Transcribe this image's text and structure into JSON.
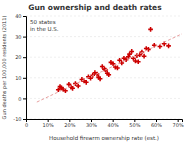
{
  "chart_data": {
    "type": "scatter",
    "title": "Gun ownership and death rates",
    "xlabel": "Household firearm ownership rate (est.)",
    "ylabel": "Gun deaths per 100,000 residents (2011)",
    "annotation": "50 states\nin the U.S.",
    "xlim": [
      0,
      0.72
    ],
    "ylim": [
      -10,
      40
    ],
    "xticks": [
      0,
      {
        "value": 0.1,
        "label": "10%"
      },
      {
        "value": 0.2,
        "label": "20%"
      },
      {
        "value": 0.3,
        "label": "30%"
      },
      {
        "value": 0.4,
        "label": "40%"
      },
      {
        "value": 0.5,
        "label": "50%"
      },
      {
        "value": 0.6,
        "label": "60%"
      },
      {
        "value": 0.7,
        "label": "70%"
      }
    ],
    "yticks": [
      -10,
      0,
      10,
      20,
      30,
      40
    ],
    "grid": "y",
    "series": [
      {
        "type": "scatter",
        "marker": "plus",
        "color": "#cc0000",
        "x": [
          0.149,
          0.157,
          0.163,
          0.171,
          0.182,
          0.198,
          0.208,
          0.215,
          0.228,
          0.241,
          0.258,
          0.268,
          0.278,
          0.288,
          0.298,
          0.308,
          0.318,
          0.328,
          0.335,
          0.342,
          0.352,
          0.362,
          0.368,
          0.375,
          0.382,
          0.392,
          0.402,
          0.412,
          0.422,
          0.432,
          0.442,
          0.452,
          0.462,
          0.472,
          0.478,
          0.488,
          0.495,
          0.505,
          0.512,
          0.518,
          0.525,
          0.535,
          0.545,
          0.555,
          0.565,
          0.575,
          0.592,
          0.618,
          0.638,
          0.658
        ],
        "values": [
          4.2,
          5.8,
          5.1,
          4.5,
          3.7,
          6.8,
          5.5,
          4.9,
          7.2,
          6.0,
          9.2,
          8.5,
          7.8,
          10.5,
          9.8,
          11.2,
          12.5,
          11.8,
          10.2,
          9.5,
          15.5,
          14.2,
          13.8,
          12.2,
          11.5,
          17.5,
          16.8,
          15.2,
          14.8,
          18.5,
          17.2,
          19.5,
          18.8,
          20.2,
          21.5,
          22.8,
          19.5,
          18.2,
          20.8,
          17.8,
          21.2,
          22.5,
          20.5,
          24.2,
          23.8,
          33.5,
          25.8,
          25.2,
          26.5,
          25.5
        ]
      },
      {
        "type": "line",
        "line_style": "dashed",
        "color": "#e8a0a0",
        "x": [
          0.05,
          0.72
        ],
        "values": [
          -1.7821,
          31.3508
        ]
      }
    ]
  }
}
